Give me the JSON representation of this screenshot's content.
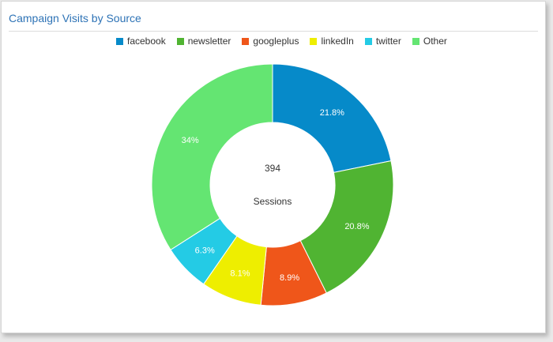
{
  "chart_data": {
    "type": "pie",
    "title": "Campaign Visits by Source",
    "categories": [
      "facebook",
      "newsletter",
      "googleplus",
      "linkedIn",
      "twitter",
      "Other"
    ],
    "values": [
      21.8,
      20.8,
      8.9,
      8.1,
      6.3,
      34
    ],
    "value_labels": [
      "21.8%",
      "20.8%",
      "8.9%",
      "8.1%",
      "6.3%",
      "34%"
    ],
    "colors": [
      "#068ac9",
      "#50b432",
      "#ef561a",
      "#eeee00",
      "#24cbe5",
      "#64e572"
    ],
    "center": {
      "value": "394",
      "label": "Sessions"
    },
    "legend": "top-center"
  }
}
